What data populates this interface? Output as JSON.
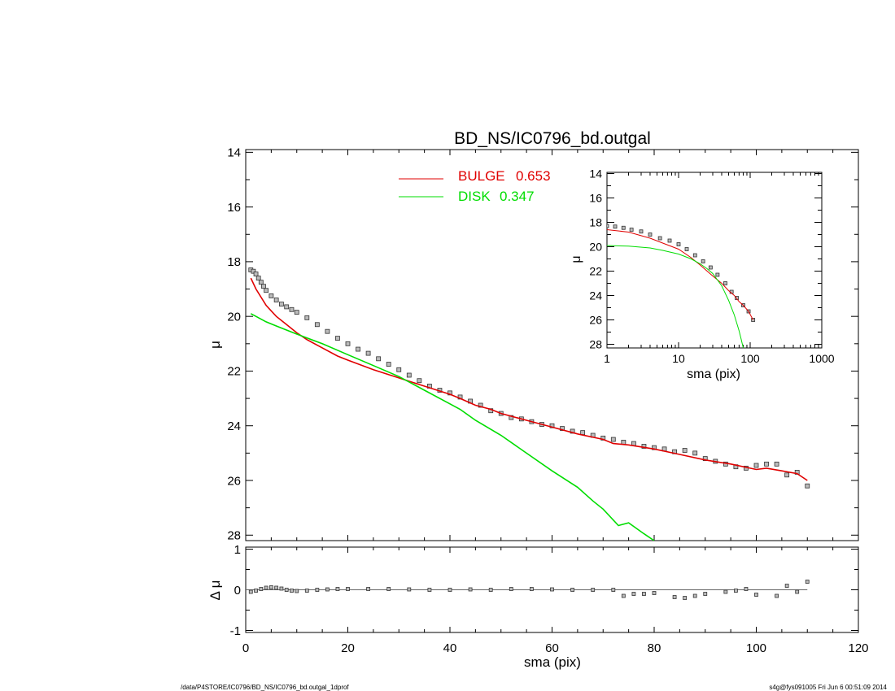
{
  "page": {
    "footer_left": "/data/P4STORE/IC0796/BD_NS/IC0796_bd.outgal_1dprof",
    "footer_right": "s4g@fys091005  Fri Jun  6 00:51:09 2014"
  },
  "chart_data": [
    {
      "id": "main",
      "type": "scatter",
      "title": "BD_NS/IC0796_bd.outgal",
      "xlabel": "",
      "ylabel": "μ",
      "xlim": [
        0,
        120
      ],
      "ylim": [
        28.2,
        13.9
      ],
      "y_inverted": true,
      "x_ticks": [
        0,
        20,
        40,
        60,
        80,
        100,
        120
      ],
      "y_ticks": [
        14,
        16,
        18,
        20,
        22,
        24,
        26,
        28
      ],
      "legend_position": "top-center",
      "legend": [
        {
          "label": "BULGE",
          "value": "0.653",
          "color": "#e00000"
        },
        {
          "label": "DISK",
          "value": "0.347",
          "color": "#00dd00"
        }
      ],
      "series": [
        {
          "name": "data",
          "kind": "points",
          "x": [
            1.0,
            1.5,
            2.0,
            2.5,
            3.0,
            3.5,
            4.0,
            5.0,
            6.0,
            7.0,
            8.0,
            9.0,
            10.0,
            12.0,
            14.0,
            16.0,
            18.0,
            20.0,
            22.0,
            24.0,
            26.0,
            28.0,
            30.0,
            32.0,
            34.0,
            36.0,
            38.0,
            40.0,
            42.0,
            44.0,
            46.0,
            48.0,
            50.0,
            52.0,
            54.0,
            56.0,
            58.0,
            60.0,
            62.0,
            64.0,
            66.0,
            68.0,
            70.0,
            72.0,
            74.0,
            76.0,
            78.0,
            80.0,
            82.0,
            84.0,
            86.0,
            88.0,
            90.0,
            92.0,
            94.0,
            96.0,
            98.0,
            100.0,
            102.0,
            104.0,
            106.0,
            108.0,
            110.0
          ],
          "y": [
            18.3,
            18.35,
            18.45,
            18.6,
            18.75,
            18.9,
            19.05,
            19.25,
            19.4,
            19.55,
            19.65,
            19.75,
            19.85,
            20.05,
            20.3,
            20.55,
            20.8,
            21.0,
            21.2,
            21.35,
            21.55,
            21.75,
            21.95,
            22.15,
            22.35,
            22.55,
            22.7,
            22.8,
            22.95,
            23.1,
            23.25,
            23.45,
            23.55,
            23.7,
            23.75,
            23.85,
            23.95,
            24.0,
            24.1,
            24.2,
            24.25,
            24.35,
            24.45,
            24.5,
            24.6,
            24.65,
            24.75,
            24.8,
            24.85,
            24.95,
            24.9,
            25.0,
            25.2,
            25.3,
            25.4,
            25.5,
            25.55,
            25.45,
            25.4,
            25.4,
            25.8,
            25.7,
            26.2
          ]
        },
        {
          "name": "BULGE",
          "kind": "line",
          "color": "#e00000",
          "x": [
            1.0,
            2.0,
            4.0,
            6.0,
            8.0,
            10.0,
            12.0,
            15.0,
            18.0,
            20.0,
            25.0,
            30.0,
            35.0,
            40.0,
            42.0,
            45.0,
            48.0,
            50.0,
            55.0,
            60.0,
            65.0,
            70.0,
            72.0,
            75.0,
            80.0,
            85.0,
            90.0,
            95.0,
            100.0,
            102.0,
            105.0,
            108.0,
            110.0
          ],
          "y": [
            18.6,
            19.0,
            19.6,
            20.0,
            20.3,
            20.6,
            20.85,
            21.15,
            21.45,
            21.6,
            21.95,
            22.25,
            22.55,
            22.85,
            23.0,
            23.25,
            23.4,
            23.55,
            23.8,
            24.05,
            24.3,
            24.5,
            24.65,
            24.7,
            24.85,
            25.05,
            25.25,
            25.4,
            25.6,
            25.55,
            25.65,
            25.75,
            26.0
          ]
        },
        {
          "name": "DISK",
          "kind": "line",
          "color": "#00dd00",
          "x": [
            1.0,
            2.0,
            4.0,
            6.0,
            8.0,
            10.0,
            15.0,
            20.0,
            25.0,
            30.0,
            35.0,
            40.0,
            42.0,
            45.0,
            50.0,
            55.0,
            60.0,
            65.0,
            68.0,
            70.0,
            73.0,
            75.0,
            78.0,
            80.0
          ],
          "y": [
            19.9,
            20.0,
            20.2,
            20.35,
            20.5,
            20.65,
            21.0,
            21.4,
            21.8,
            22.2,
            22.7,
            23.2,
            23.4,
            23.8,
            24.35,
            25.0,
            25.65,
            26.25,
            26.75,
            27.05,
            27.65,
            27.55,
            27.95,
            28.2
          ]
        }
      ]
    },
    {
      "id": "residual",
      "type": "scatter",
      "xlabel": "sma (pix)",
      "ylabel": "Δ μ",
      "xlim": [
        0,
        120
      ],
      "ylim": [
        -1.05,
        1.05
      ],
      "x_ticks": [
        0,
        20,
        40,
        60,
        80,
        100,
        120
      ],
      "y_ticks": [
        -1,
        0,
        1
      ],
      "series": [
        {
          "name": "residual",
          "kind": "points",
          "x": [
            1.0,
            2.0,
            3.0,
            4.0,
            5.0,
            6.0,
            7.0,
            8.0,
            9.0,
            10.0,
            12.0,
            14.0,
            16.0,
            18.0,
            20.0,
            24.0,
            28.0,
            32.0,
            36.0,
            40.0,
            44.0,
            48.0,
            52.0,
            56.0,
            60.0,
            64.0,
            68.0,
            72.0,
            74.0,
            76.0,
            78.0,
            80.0,
            84.0,
            86.0,
            88.0,
            90.0,
            94.0,
            96.0,
            98.0,
            100.0,
            104.0,
            106.0,
            108.0,
            110.0
          ],
          "y": [
            -0.05,
            -0.02,
            0.02,
            0.05,
            0.06,
            0.05,
            0.03,
            0.0,
            -0.02,
            -0.03,
            -0.02,
            0.0,
            0.01,
            0.02,
            0.02,
            0.02,
            0.02,
            0.01,
            0.0,
            0.0,
            0.01,
            0.0,
            0.02,
            0.02,
            0.01,
            0.0,
            0.0,
            0.0,
            -0.15,
            -0.1,
            -0.1,
            -0.08,
            -0.18,
            -0.2,
            -0.15,
            -0.1,
            -0.05,
            -0.02,
            0.02,
            -0.12,
            -0.15,
            0.1,
            -0.05,
            0.2
          ]
        }
      ]
    },
    {
      "id": "inset",
      "type": "scatter",
      "xlabel": "sma (pix)",
      "ylabel": "μ",
      "x_scale": "log",
      "xlim": [
        1,
        1000
      ],
      "ylim": [
        28.3,
        13.9
      ],
      "y_inverted": true,
      "x_ticks": [
        1,
        10,
        100,
        1000
      ],
      "x_tick_labels": [
        "1",
        "10",
        "100",
        "1000"
      ],
      "y_ticks": [
        14,
        16,
        18,
        20,
        22,
        24,
        26,
        28
      ],
      "series": [
        {
          "name": "data",
          "kind": "points",
          "x": [
            1.0,
            1.3,
            1.7,
            2.2,
            3.0,
            4.0,
            5.5,
            7.5,
            10.0,
            13.0,
            17.0,
            22.0,
            28.0,
            35.0,
            45.0,
            55.0,
            65.0,
            80.0,
            95.0,
            110.0
          ],
          "y": [
            18.3,
            18.35,
            18.45,
            18.6,
            18.75,
            19.0,
            19.3,
            19.5,
            19.8,
            20.2,
            20.7,
            21.2,
            21.7,
            22.3,
            23.0,
            23.7,
            24.2,
            24.8,
            25.3,
            26.0
          ]
        },
        {
          "name": "BULGE",
          "kind": "line",
          "color": "#e00000",
          "x": [
            1.0,
            2.0,
            4.0,
            6.0,
            10.0,
            15.0,
            20.0,
            30.0,
            40.0,
            50.0,
            60.0,
            70.0,
            80.0,
            95.0,
            110.0
          ],
          "y": [
            18.6,
            18.8,
            19.3,
            19.7,
            20.2,
            20.9,
            21.5,
            22.4,
            23.0,
            23.6,
            24.0,
            24.5,
            24.8,
            25.3,
            26.0
          ]
        },
        {
          "name": "DISK",
          "kind": "line",
          "color": "#00dd00",
          "x": [
            1.0,
            2.0,
            4.0,
            6.0,
            10.0,
            15.0,
            20.0,
            25.0,
            30.0,
            40.0,
            50.0,
            60.0,
            70.0,
            75.0,
            80.0
          ],
          "y": [
            19.9,
            19.95,
            20.1,
            20.3,
            20.6,
            21.0,
            21.4,
            21.8,
            22.2,
            23.2,
            24.4,
            25.6,
            26.9,
            27.6,
            28.3
          ]
        }
      ]
    }
  ]
}
